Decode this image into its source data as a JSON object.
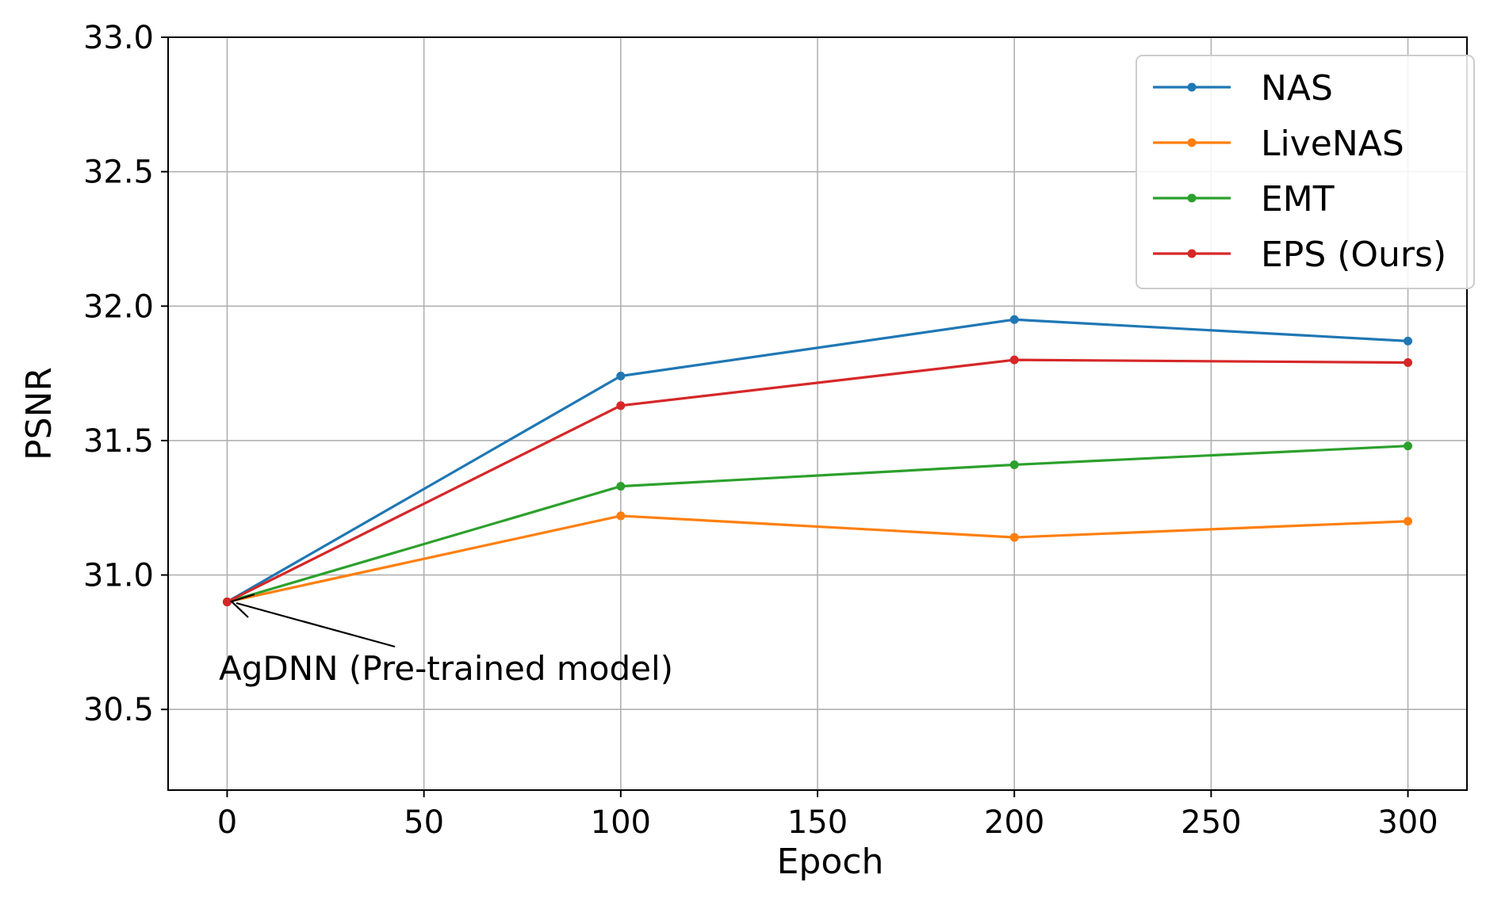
{
  "chart_data": {
    "type": "line",
    "title": "",
    "xlabel": "Epoch",
    "ylabel": "PSNR",
    "xlim": [
      -15,
      315
    ],
    "ylim": [
      30.2,
      33.0
    ],
    "xticks": [
      0,
      50,
      100,
      150,
      200,
      250,
      300
    ],
    "xtick_labels": [
      "0",
      "50",
      "100",
      "150",
      "200",
      "250",
      "300"
    ],
    "yticks": [
      30.5,
      31.0,
      31.5,
      32.0,
      32.5,
      33.0
    ],
    "ytick_labels": [
      "30.5",
      "31.0",
      "31.5",
      "32.0",
      "32.5",
      "33.0"
    ],
    "grid": true,
    "legend_position": "top-right",
    "x": [
      0,
      100,
      200,
      300
    ],
    "series": [
      {
        "name": "NAS",
        "color": "#1f77b4",
        "values": [
          30.9,
          31.74,
          31.95,
          31.87
        ]
      },
      {
        "name": "LiveNAS",
        "color": "#ff7f0e",
        "values": [
          30.9,
          31.22,
          31.14,
          31.2
        ]
      },
      {
        "name": "EMT",
        "color": "#2ca02c",
        "values": [
          30.9,
          31.33,
          31.41,
          31.48
        ]
      },
      {
        "name": "EPS (Ours)",
        "color": "#d62728",
        "values": [
          30.9,
          31.63,
          31.8,
          31.79
        ]
      }
    ],
    "annotations": [
      {
        "text": "AgDNN (Pre-trained model)",
        "point": [
          0,
          30.9
        ]
      }
    ]
  }
}
